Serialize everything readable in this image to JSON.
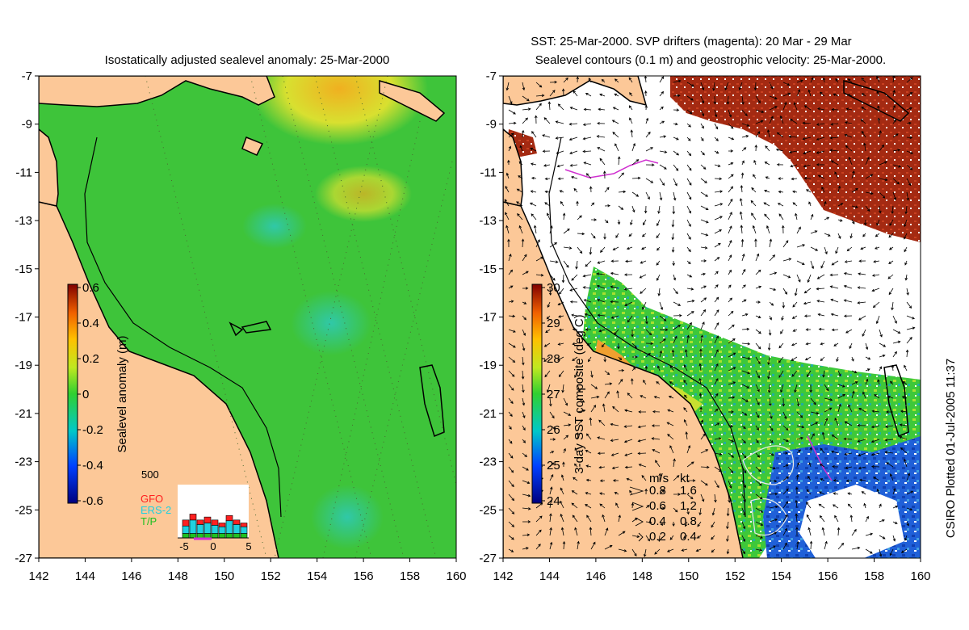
{
  "left_panel": {
    "title": "Isostatically adjusted sealevel anomaly: 25-Mar-2000",
    "colorbar_label": "Sealevel anomaly (m)",
    "colorbar_ticks": [
      "0.6",
      "0.4",
      "0.2",
      "0",
      "-0.2",
      "-0.4",
      "-0.6"
    ],
    "histogram": {
      "ymax_label": "500",
      "legend": [
        {
          "label": "GFO",
          "color": "#ff2020"
        },
        {
          "label": "ERS-2",
          "color": "#20d0e0"
        },
        {
          "label": "T/P",
          "color": "#20c020"
        }
      ],
      "xticks": [
        "-5",
        "0",
        "5"
      ],
      "bars": [
        {
          "tp": 60,
          "ers": 100,
          "gfo": 80
        },
        {
          "tp": 60,
          "ers": 180,
          "gfo": 80
        },
        {
          "tp": 60,
          "ers": 120,
          "gfo": 60
        },
        {
          "tp": 60,
          "ers": 140,
          "gfo": 80
        },
        {
          "tp": 60,
          "ers": 110,
          "gfo": 70
        },
        {
          "tp": 60,
          "ers": 90,
          "gfo": 50
        },
        {
          "tp": 60,
          "ers": 170,
          "gfo": 70
        },
        {
          "tp": 60,
          "ers": 120,
          "gfo": 60
        },
        {
          "tp": 60,
          "ers": 90,
          "gfo": 50
        }
      ]
    }
  },
  "right_panel": {
    "title_line1": "SST: 25-Mar-2000. SVP drifters (magenta): 20 Mar - 29 Mar",
    "title_line2": "Sealevel contours (0.1 m) and geostrophic velocity: 25-Mar-2000.",
    "colorbar_label": "3-day SST composite (deg C)",
    "colorbar_ticks": [
      "30",
      "29",
      "28",
      "27",
      "26",
      "25",
      "24"
    ],
    "velocity_legend": {
      "header_ms": "m/s",
      "header_kt": "kt",
      "rows": [
        {
          "ms": "0.8",
          "kt": "1.6"
        },
        {
          "ms": "0.6",
          "kt": "1.2"
        },
        {
          "ms": "0.4",
          "kt": "0.8"
        },
        {
          "ms": "0.2",
          "kt": "0.4"
        }
      ]
    }
  },
  "axes": {
    "x_ticks": [
      "142",
      "144",
      "146",
      "148",
      "150",
      "152",
      "154",
      "156",
      "158",
      "160"
    ],
    "y_ticks": [
      "-7",
      "-9",
      "-11",
      "-13",
      "-15",
      "-17",
      "-19",
      "-21",
      "-23",
      "-25",
      "-27"
    ],
    "lon_range": [
      142,
      160
    ],
    "lat_range": [
      -27,
      -7
    ]
  },
  "side_label": "CSIRO Plotted 01-Jul-2005 11:37",
  "colors": {
    "land": "#fcc898",
    "ocean_green": "#3ec43a",
    "ocean_teal": "#30c890",
    "ocean_yellow": "#d8e830",
    "ocean_orange": "#f0a020",
    "sst_red": "#a02810",
    "sst_green": "#40d040",
    "sst_blue": "#2050d0",
    "sst_orange": "#f0a030",
    "magenta": "#d030d0"
  }
}
